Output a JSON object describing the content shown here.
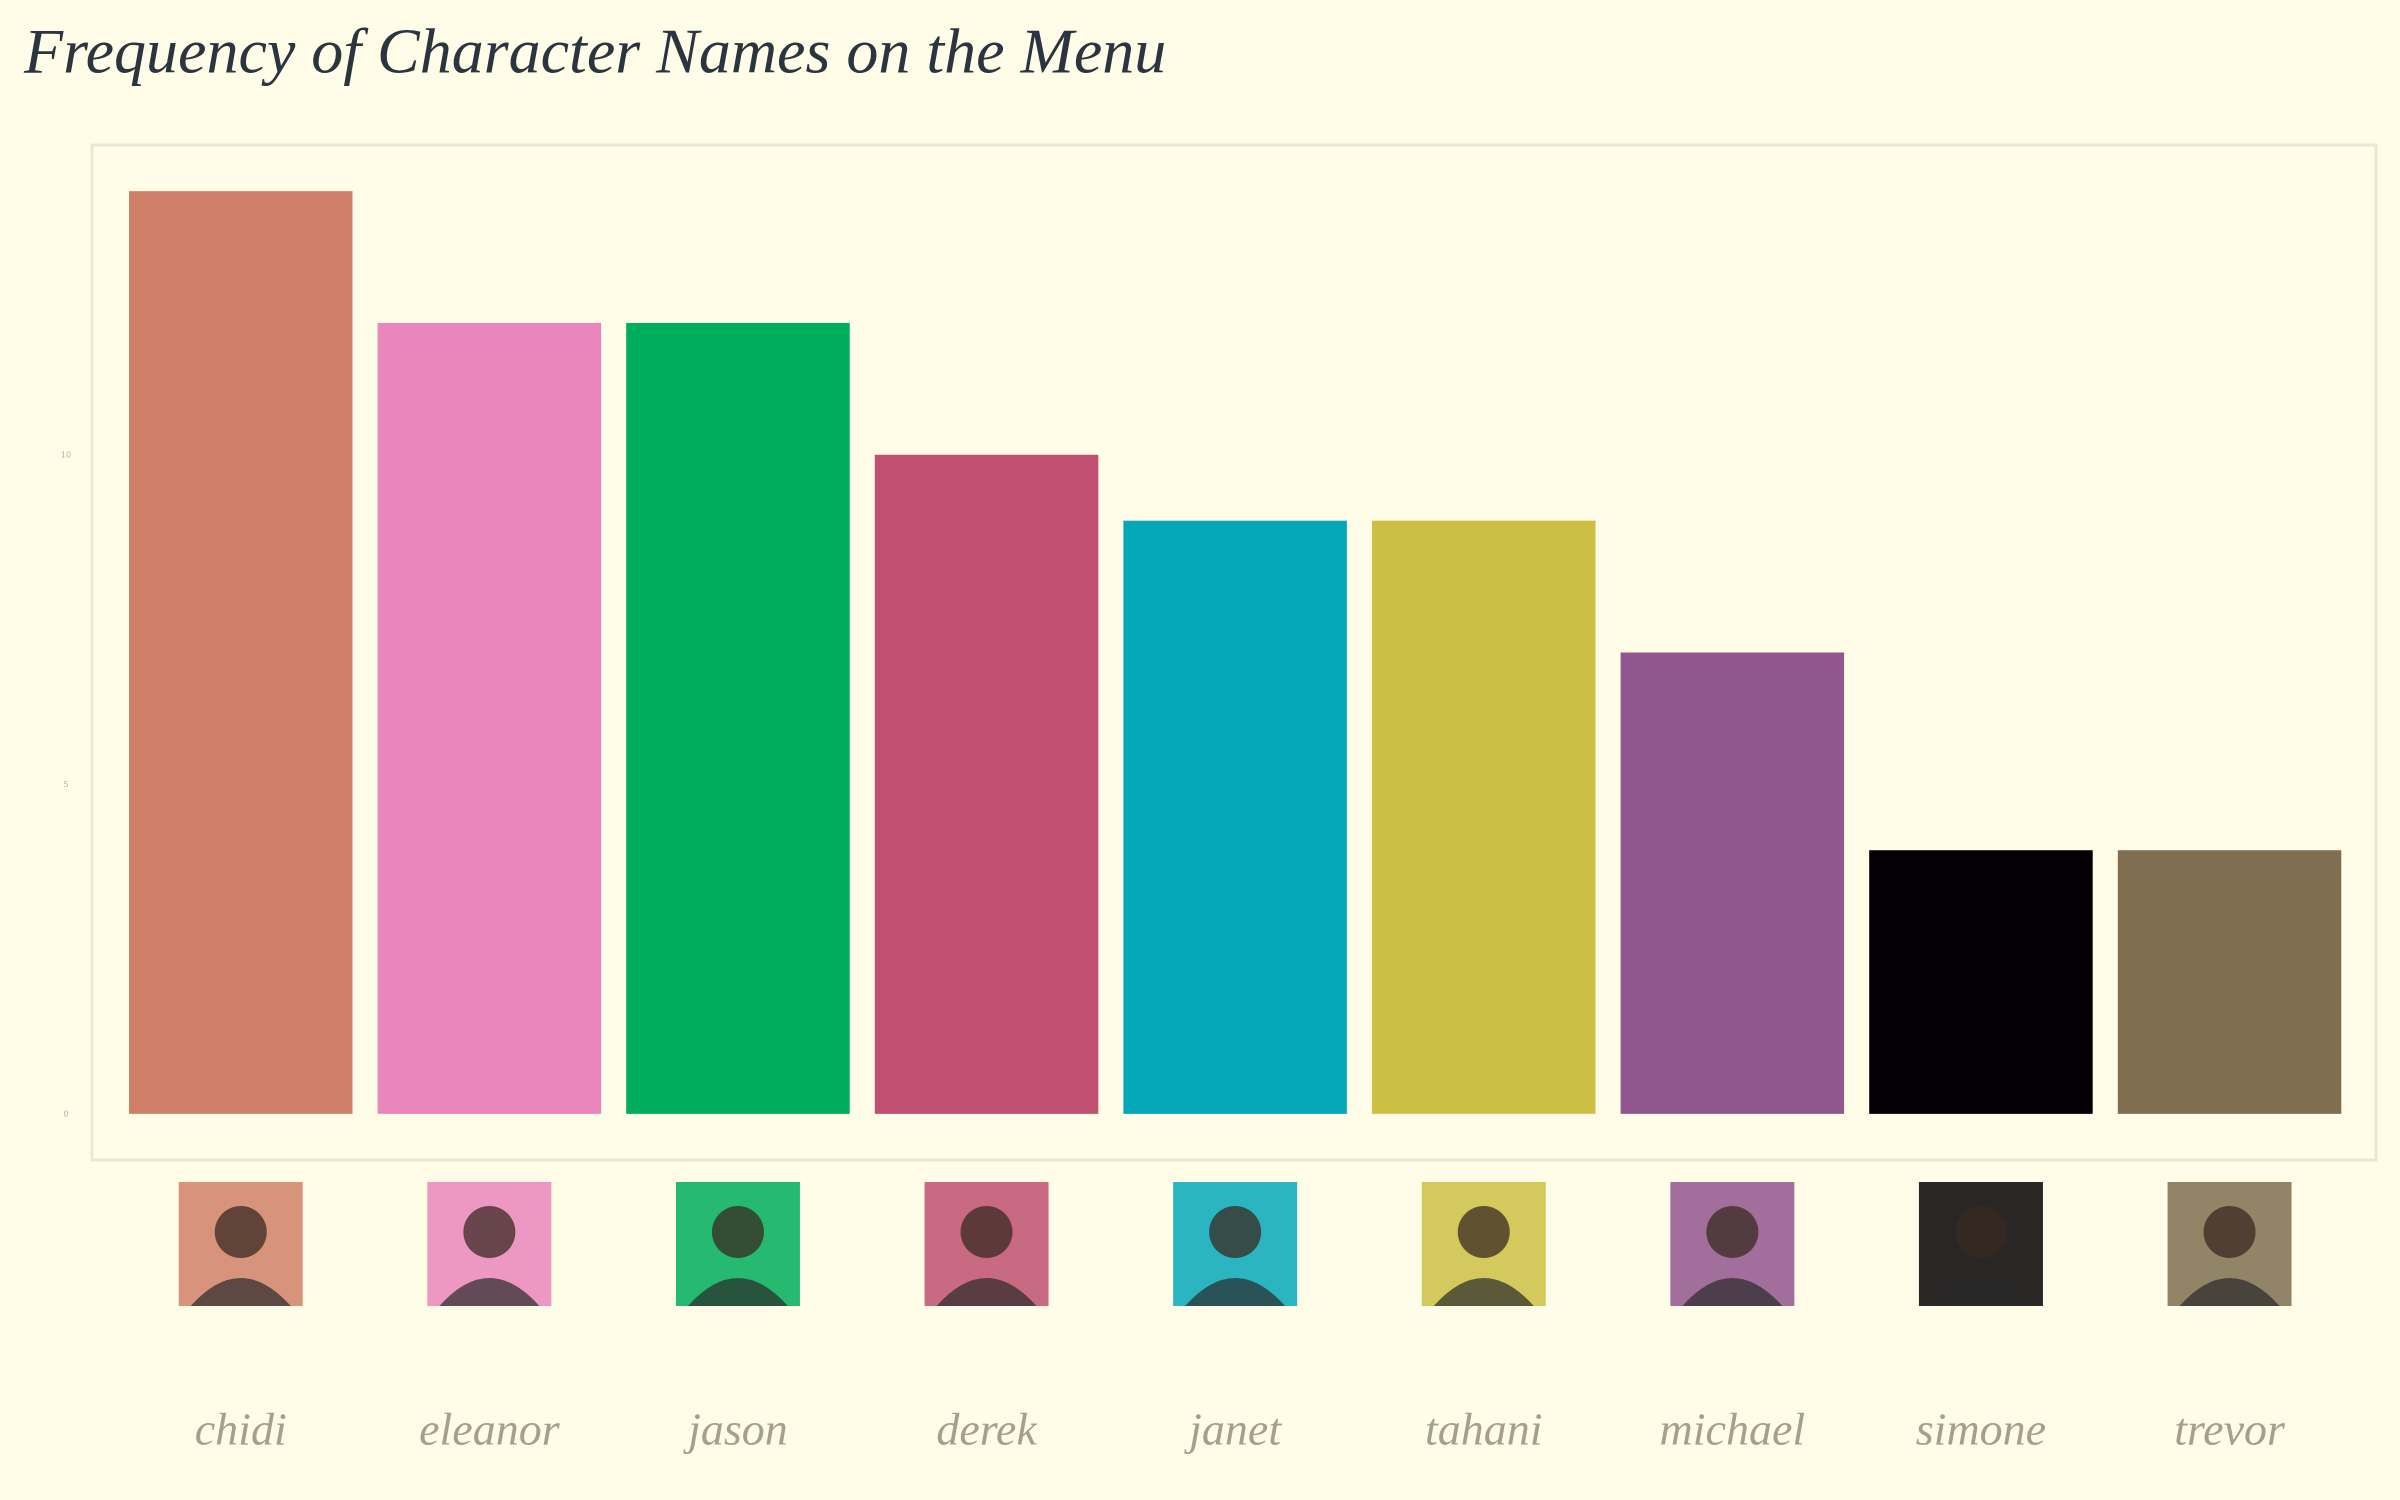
{
  "chart_data": {
    "type": "bar",
    "title": "Frequency of Character Names on the Menu",
    "categories": [
      "chidi",
      "eleanor",
      "jason",
      "derek",
      "janet",
      "tahani",
      "michael",
      "simone",
      "trevor"
    ],
    "values": [
      14,
      12,
      12,
      10,
      9,
      9,
      7,
      4,
      4
    ],
    "colors": [
      "#d08068",
      "#ea86bb",
      "#00ad5a",
      "#c05071",
      "#05a8b8",
      "#cdbf44",
      "#92568f",
      "#040003",
      "#7f6e50"
    ],
    "ylim": [
      -0.7,
      14.7
    ],
    "yticks": [
      0,
      5,
      10
    ],
    "grid": false
  }
}
